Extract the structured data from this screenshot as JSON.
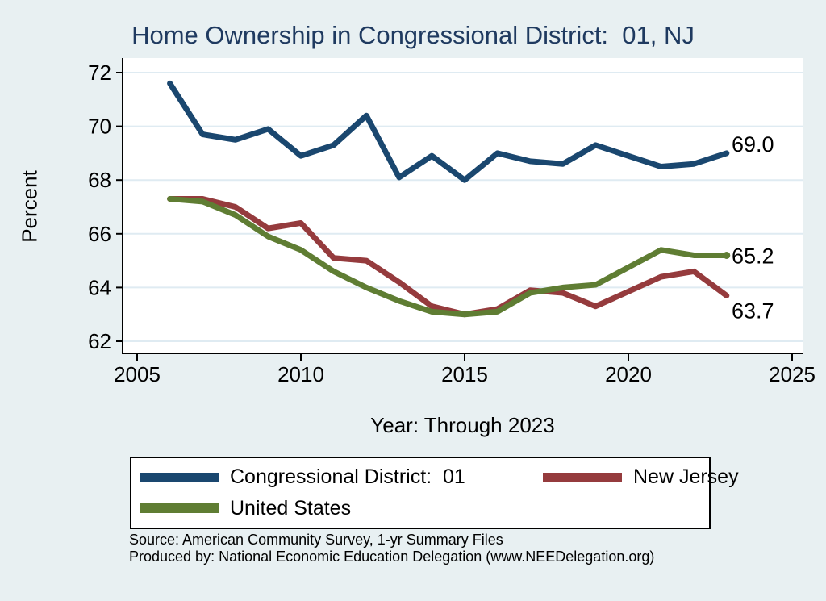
{
  "title": "Home Ownership in Congressional District:  01, NJ",
  "y_axis": {
    "label": "Percent",
    "ticks": [
      "72",
      "70",
      "68",
      "66",
      "64",
      "62"
    ]
  },
  "x_axis": {
    "label": "Year: Through 2023",
    "ticks": [
      "2005",
      "2010",
      "2015",
      "2020",
      "2025"
    ]
  },
  "chart_data": {
    "type": "line",
    "x": [
      2006,
      2007,
      2008,
      2009,
      2010,
      2011,
      2012,
      2013,
      2014,
      2015,
      2016,
      2017,
      2018,
      2019,
      2020,
      2021,
      2022,
      2023
    ],
    "x_range": [
      2005,
      2025
    ],
    "y_range": [
      61.5,
      72.5
    ],
    "grid": true,
    "legend_position": "bottom",
    "series": [
      {
        "name": "Congressional District:  01",
        "color": "#1a476f",
        "end_label": "69.0",
        "end_marker": false,
        "values": [
          71.6,
          69.7,
          69.5,
          69.9,
          68.9,
          69.3,
          70.4,
          68.1,
          68.9,
          68.0,
          69.0,
          68.7,
          68.6,
          69.3,
          null,
          68.5,
          68.6,
          69.0
        ]
      },
      {
        "name": "New Jersey",
        "color": "#953b3d",
        "end_label": "63.7",
        "end_marker": false,
        "values": [
          67.3,
          67.3,
          67.0,
          66.2,
          66.4,
          65.1,
          65.0,
          64.2,
          63.3,
          63.0,
          63.2,
          63.9,
          63.8,
          63.3,
          null,
          64.4,
          64.6,
          63.7
        ]
      },
      {
        "name": "United States",
        "color": "#5f7d33",
        "end_label": "65.2",
        "end_marker": true,
        "values": [
          67.3,
          67.2,
          66.7,
          65.9,
          65.4,
          64.6,
          64.0,
          63.5,
          63.1,
          63.0,
          63.1,
          63.8,
          64.0,
          64.1,
          null,
          65.4,
          65.2,
          65.2
        ]
      }
    ]
  },
  "legend": {
    "items": [
      {
        "label": "Congressional District:  01",
        "color": "#1a476f"
      },
      {
        "label": "New Jersey",
        "color": "#953b3d"
      },
      {
        "label": "United States",
        "color": "#5f7d33"
      }
    ]
  },
  "notes": {
    "line1": "Source: American Community Survey, 1-yr Summary Files",
    "line2": "Produced by: National Economic Education Delegation (www.NEEDelegation.org)"
  },
  "colors": {
    "background": "#e8f0f2",
    "plot_background": "#ffffff",
    "grid": "#dfebf2",
    "axis": "#000000",
    "title": "#1f3a60"
  }
}
